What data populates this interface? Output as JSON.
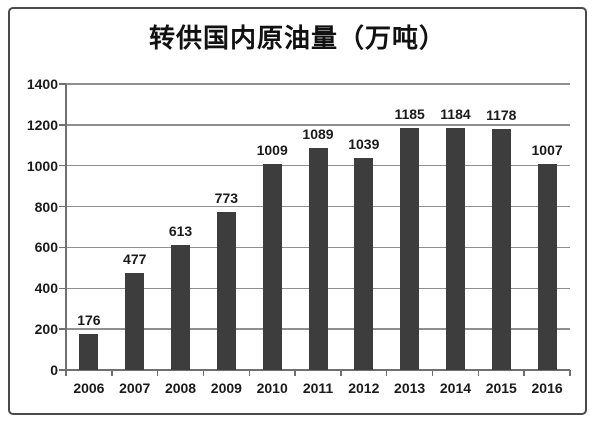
{
  "chart_data": {
    "type": "bar",
    "title": "转供国内原油量（万吨）",
    "categories": [
      "2006",
      "2007",
      "2008",
      "2009",
      "2010",
      "2011",
      "2012",
      "2013",
      "2014",
      "2015",
      "2016"
    ],
    "values": [
      176,
      477,
      613,
      773,
      1009,
      1089,
      1039,
      1185,
      1184,
      1178,
      1007
    ],
    "data_labels": [
      "176",
      "477",
      "613",
      "773",
      "1009",
      "1089",
      "1039",
      "1185",
      "1184",
      "1178",
      "1007"
    ],
    "ytick_labels": [
      "0",
      "200",
      "400",
      "600",
      "800",
      "1000",
      "1200",
      "1400"
    ],
    "xlabel": "",
    "ylabel": "",
    "ylim": [
      0,
      1400
    ],
    "ytick_step": 200,
    "grid": true,
    "legend": "none",
    "colors": {
      "bar": "#3d3d3d",
      "grid": "#8f8f8f",
      "axis": "#707070",
      "text": "#1a1a1a",
      "title": "#111111",
      "frame_border": "#4a4a4a",
      "background": "#ffffff"
    }
  }
}
